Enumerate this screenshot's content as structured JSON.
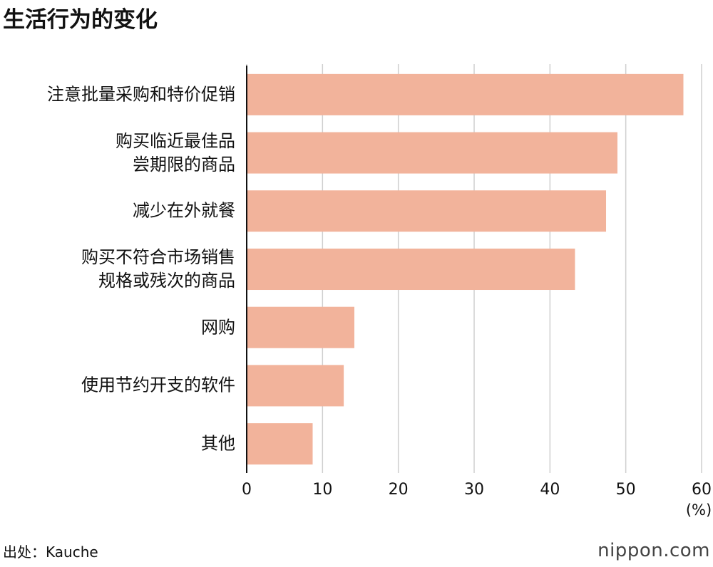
{
  "chart_data": {
    "type": "bar",
    "orientation": "horizontal",
    "title": "生活行为的变化",
    "categories": [
      "注意批量采购和特价促销",
      "购买临近最佳品\n尝期限的商品",
      "减少在外就餐",
      "购买不符合市场销售\n规格或残次的商品",
      "网购",
      "使用节约开支的软件",
      "其他"
    ],
    "values": [
      57.6,
      48.9,
      47.4,
      43.3,
      14.2,
      12.8,
      8.7
    ],
    "color": "#f2b39b",
    "xlim": [
      0,
      60
    ],
    "xticks": [
      0,
      10,
      20,
      30,
      40,
      50,
      60
    ],
    "grid": true,
    "unit": "(%)",
    "source": "出处：Kauche",
    "logo": "nippon.com"
  }
}
